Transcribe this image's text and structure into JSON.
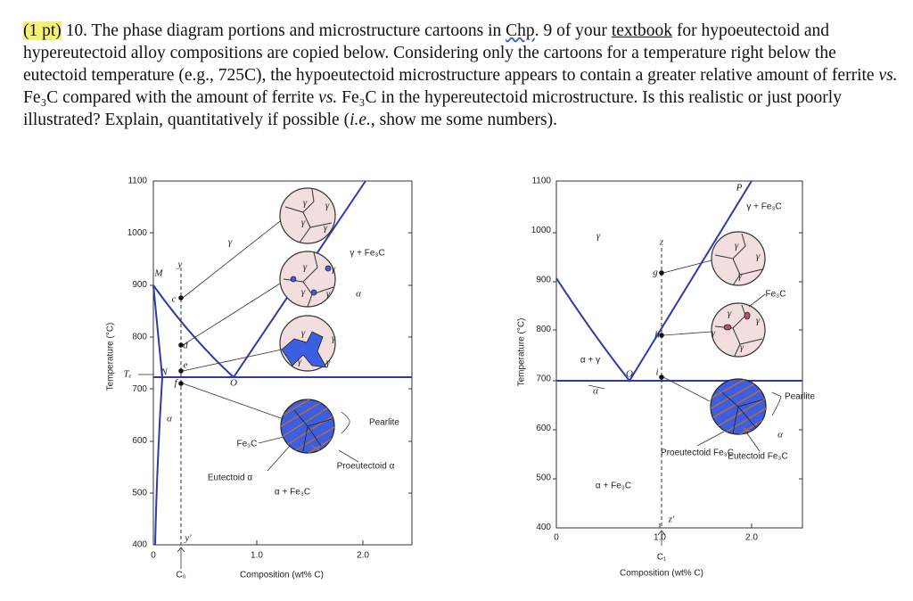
{
  "question": {
    "segments": [
      "(1 pt)",
      " 10. The phase diagram portions and microstructure cartoons in ",
      "Chp",
      ". 9 of your ",
      "textbook",
      " for hypoeutectoid and hypereutectoid alloy compositions are copied below. Considering only the cartoons for a temperature right below the eutectoid temperature (e.g., 725C), the hypoeutectoid microstructure appears to contain a greater relative amount of ferrite ",
      "vs.",
      " Fe₃C compared with the amount of ferrite ",
      "vs.",
      " Fe₃C in the hypereutectoid microstructure. Is this realistic or just poorly illustrated? Explain, quantitatively if possible (",
      "i.e.,",
      " show me some numbers)."
    ]
  },
  "diagrams": [
    {
      "y_axis_label": "Temperature (°C)",
      "x_axis_label": "Composition (wt% C)",
      "y_ticks": [
        "1100",
        "1000",
        "900",
        "800",
        "700",
        "600",
        "500",
        "400"
      ],
      "x_ticks": [
        "0",
        "1.0",
        "2.0"
      ],
      "annotations": [
        "M",
        "N",
        "O",
        "Tₑ",
        "y",
        "c",
        "d",
        "e",
        "f",
        "α",
        "γ",
        "γ + Fe₃C",
        "Fe₃C",
        "Eutectoid α",
        "α + Fe₃C",
        "Pearlite",
        "Proeutectoid α",
        "α",
        "y′",
        "C₀",
        "γ",
        "γ",
        "γ",
        "γ",
        "γ",
        "γ",
        "γ",
        "γ",
        "γ",
        "γ",
        "γ",
        "γ"
      ]
    },
    {
      "y_axis_label": "Temperature (°C)",
      "x_axis_label": "Composition (wt% C)",
      "y_ticks": [
        "1100",
        "1000",
        "900",
        "800",
        "700",
        "600",
        "500",
        "400"
      ],
      "x_ticks": [
        "0",
        "1.0",
        "2.0"
      ],
      "annotations": [
        "P",
        "γ + Fe₃C",
        "γ",
        "z",
        "g",
        "h",
        "i",
        "O",
        "α + γ",
        "α",
        "α + Fe₃C",
        "Fe₃C",
        "Pearlite",
        "Proeutectoid Fe₃C",
        "Eutectoid Fe₃C",
        "α",
        "z′",
        "C₁",
        "γ",
        "γ",
        "γ",
        "γ",
        "γ",
        "γ",
        "γ"
      ]
    }
  ]
}
